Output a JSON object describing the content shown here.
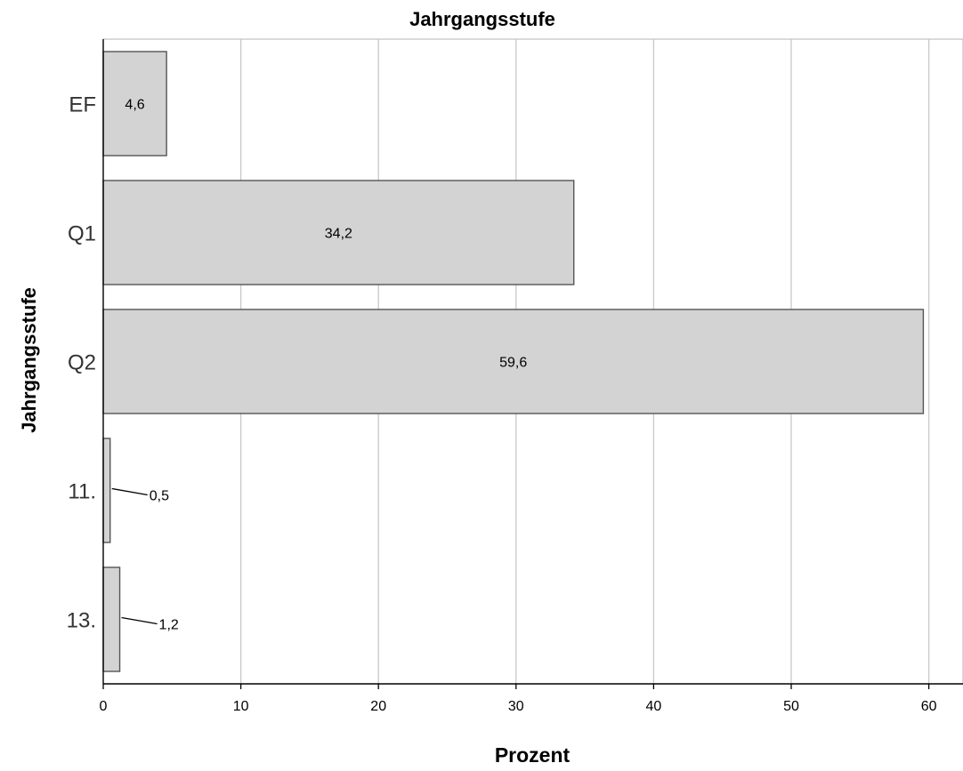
{
  "chart_data": {
    "type": "bar",
    "orientation": "horizontal",
    "title": "Jahrgangsstufe",
    "xlabel": "Prozent",
    "ylabel": "Jahrgangsstufe",
    "categories": [
      "EF",
      "Q1",
      "Q2",
      "11.",
      "13."
    ],
    "values": [
      4.6,
      34.2,
      59.6,
      0.5,
      1.2
    ],
    "value_labels": [
      "4,6",
      "34,2",
      "59,6",
      "0,5",
      "1,2"
    ],
    "xlim": [
      0,
      62.5
    ],
    "x_ticks": [
      0,
      10,
      20,
      30,
      40,
      50,
      60
    ],
    "x_tick_labels": [
      "0",
      "10",
      "20",
      "30",
      "40",
      "50",
      "60"
    ],
    "grid": "vertical",
    "legend": "none",
    "colors": {
      "bar_fill": "#d3d3d3",
      "bar_stroke": "#555555",
      "grid": "#c8c8c8",
      "axis": "#000000",
      "text": "#000000"
    }
  }
}
